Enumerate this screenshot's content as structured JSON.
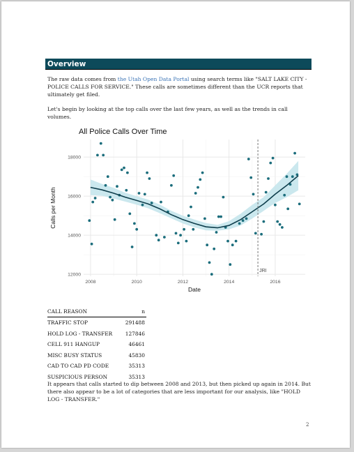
{
  "section": {
    "title": "Overview"
  },
  "intro": {
    "text_before": "The raw data comes from ",
    "link_text": "the Utah Open Data Portal",
    "text_after": " using search terms like \"SALT LAKE CITY - POLICE CALLS FOR SERVICE.\" These calls are sometimes different than the UCR reports that ultimately get filed."
  },
  "lead_paragraph": "Let's begin by looking at the top calls over the last few years, as well as the trends in call volumes.",
  "colors": {
    "heading_bg": "#0d4a5a",
    "points": "#1b6d7c",
    "trend": "#0e3e4c",
    "band": "#c5e6ec",
    "link": "#3a73b5"
  },
  "chart_data": {
    "type": "scatter",
    "title": "All Police Calls Over Time",
    "xlabel": "Date",
    "ylabel": "Calls per Month",
    "xlim": [
      2007.7,
      2017.3
    ],
    "ylim": [
      11900,
      18900
    ],
    "x_ticks": [
      2008,
      2010,
      2012,
      2014,
      2016
    ],
    "y_ticks": [
      12000,
      14000,
      16000,
      18000
    ],
    "grid": true,
    "vline": {
      "x": 2015.25,
      "label": "JRI"
    },
    "points": [
      {
        "x": 2007.95,
        "y": 14750
      },
      {
        "x": 2008.05,
        "y": 13550
      },
      {
        "x": 2008.1,
        "y": 15700
      },
      {
        "x": 2008.2,
        "y": 15900
      },
      {
        "x": 2008.3,
        "y": 18100
      },
      {
        "x": 2008.45,
        "y": 18700
      },
      {
        "x": 2008.55,
        "y": 18100
      },
      {
        "x": 2008.65,
        "y": 16550
      },
      {
        "x": 2008.75,
        "y": 17000
      },
      {
        "x": 2008.85,
        "y": 15950
      },
      {
        "x": 2008.95,
        "y": 15800
      },
      {
        "x": 2009.05,
        "y": 14800
      },
      {
        "x": 2009.15,
        "y": 16500
      },
      {
        "x": 2009.25,
        "y": 16050
      },
      {
        "x": 2009.35,
        "y": 17350
      },
      {
        "x": 2009.45,
        "y": 17450
      },
      {
        "x": 2009.55,
        "y": 16300
      },
      {
        "x": 2009.6,
        "y": 17200
      },
      {
        "x": 2009.7,
        "y": 15100
      },
      {
        "x": 2009.8,
        "y": 13400
      },
      {
        "x": 2009.9,
        "y": 14600
      },
      {
        "x": 2010.0,
        "y": 14300
      },
      {
        "x": 2010.1,
        "y": 16150
      },
      {
        "x": 2010.25,
        "y": 15550
      },
      {
        "x": 2010.35,
        "y": 16100
      },
      {
        "x": 2010.45,
        "y": 17200
      },
      {
        "x": 2010.55,
        "y": 16900
      },
      {
        "x": 2010.65,
        "y": 15650
      },
      {
        "x": 2010.85,
        "y": 14000
      },
      {
        "x": 2010.95,
        "y": 13750
      },
      {
        "x": 2011.05,
        "y": 15700
      },
      {
        "x": 2011.2,
        "y": 13900
      },
      {
        "x": 2011.35,
        "y": 15200
      },
      {
        "x": 2011.5,
        "y": 16550
      },
      {
        "x": 2011.6,
        "y": 17050
      },
      {
        "x": 2011.7,
        "y": 14100
      },
      {
        "x": 2011.8,
        "y": 13600
      },
      {
        "x": 2011.9,
        "y": 14000
      },
      {
        "x": 2012.05,
        "y": 14300
      },
      {
        "x": 2012.15,
        "y": 13700
      },
      {
        "x": 2012.25,
        "y": 15000
      },
      {
        "x": 2012.35,
        "y": 15450
      },
      {
        "x": 2012.45,
        "y": 14300
      },
      {
        "x": 2012.55,
        "y": 16150
      },
      {
        "x": 2012.65,
        "y": 16450
      },
      {
        "x": 2012.75,
        "y": 16850
      },
      {
        "x": 2012.85,
        "y": 17200
      },
      {
        "x": 2012.95,
        "y": 14850
      },
      {
        "x": 2013.05,
        "y": 13500
      },
      {
        "x": 2013.15,
        "y": 12600
      },
      {
        "x": 2013.25,
        "y": 12000
      },
      {
        "x": 2013.35,
        "y": 13300
      },
      {
        "x": 2013.45,
        "y": 14150
      },
      {
        "x": 2013.55,
        "y": 14950
      },
      {
        "x": 2013.65,
        "y": 14950
      },
      {
        "x": 2013.75,
        "y": 15950
      },
      {
        "x": 2013.85,
        "y": 14400
      },
      {
        "x": 2013.95,
        "y": 13700
      },
      {
        "x": 2014.05,
        "y": 12500
      },
      {
        "x": 2014.15,
        "y": 13500
      },
      {
        "x": 2014.3,
        "y": 13700
      },
      {
        "x": 2014.45,
        "y": 14600
      },
      {
        "x": 2014.6,
        "y": 14750
      },
      {
        "x": 2014.75,
        "y": 14850
      },
      {
        "x": 2014.85,
        "y": 17900
      },
      {
        "x": 2014.95,
        "y": 16950
      },
      {
        "x": 2015.05,
        "y": 16100
      },
      {
        "x": 2015.15,
        "y": 14100
      },
      {
        "x": 2015.4,
        "y": 14050
      },
      {
        "x": 2015.5,
        "y": 14700
      },
      {
        "x": 2015.6,
        "y": 16200
      },
      {
        "x": 2015.7,
        "y": 16900
      },
      {
        "x": 2015.8,
        "y": 17700
      },
      {
        "x": 2015.9,
        "y": 17950
      },
      {
        "x": 2016.0,
        "y": 15550
      },
      {
        "x": 2016.1,
        "y": 14700
      },
      {
        "x": 2016.2,
        "y": 14550
      },
      {
        "x": 2016.3,
        "y": 14400
      },
      {
        "x": 2016.4,
        "y": 16050
      },
      {
        "x": 2016.5,
        "y": 17000
      },
      {
        "x": 2016.55,
        "y": 15350
      },
      {
        "x": 2016.65,
        "y": 16600
      },
      {
        "x": 2016.75,
        "y": 17000
      },
      {
        "x": 2016.85,
        "y": 18200
      },
      {
        "x": 2016.95,
        "y": 17100
      },
      {
        "x": 2017.05,
        "y": 15600
      }
    ],
    "trend": {
      "x": [
        2008,
        2008.5,
        2009,
        2009.5,
        2010,
        2010.5,
        2011,
        2011.5,
        2012,
        2012.5,
        2013,
        2013.5,
        2014,
        2014.5,
        2015,
        2015.5,
        2016,
        2016.5,
        2017
      ],
      "y": [
        16450,
        16320,
        16150,
        15950,
        15780,
        15600,
        15350,
        15050,
        14800,
        14600,
        14430,
        14380,
        14500,
        14800,
        15200,
        15600,
        16100,
        16550,
        17050
      ],
      "lower": [
        16050,
        16020,
        15880,
        15720,
        15560,
        15380,
        15130,
        14860,
        14600,
        14400,
        14250,
        14230,
        14300,
        14500,
        14850,
        15250,
        15650,
        15950,
        16300
      ],
      "upper": [
        16850,
        16620,
        16420,
        16180,
        16000,
        15820,
        15570,
        15250,
        15000,
        14800,
        14620,
        14530,
        14720,
        15100,
        15550,
        15950,
        16550,
        17150,
        17800
      ]
    }
  },
  "table": {
    "headers": [
      "CALL REASON",
      "n"
    ],
    "rows": [
      [
        "TRAFFIC STOP",
        "291488"
      ],
      [
        "HOLD LOG - TRANSFER",
        "127846"
      ],
      [
        "CELL 911 HANGUP",
        "46461"
      ],
      [
        "MISC BUSY STATUS",
        "45830"
      ],
      [
        "CAD TO CAD PD CODE",
        "35313"
      ],
      [
        "SUSPICIOUS PERSON",
        "35313"
      ]
    ]
  },
  "closing_paragraph": "It appears that calls started to dip between 2008 and 2013, but then picked up again in 2014. But there also appear to be a lot of categories that are less important for our analysis, like \"HOLD LOG - TRANSFER.\"",
  "page_number": "2"
}
